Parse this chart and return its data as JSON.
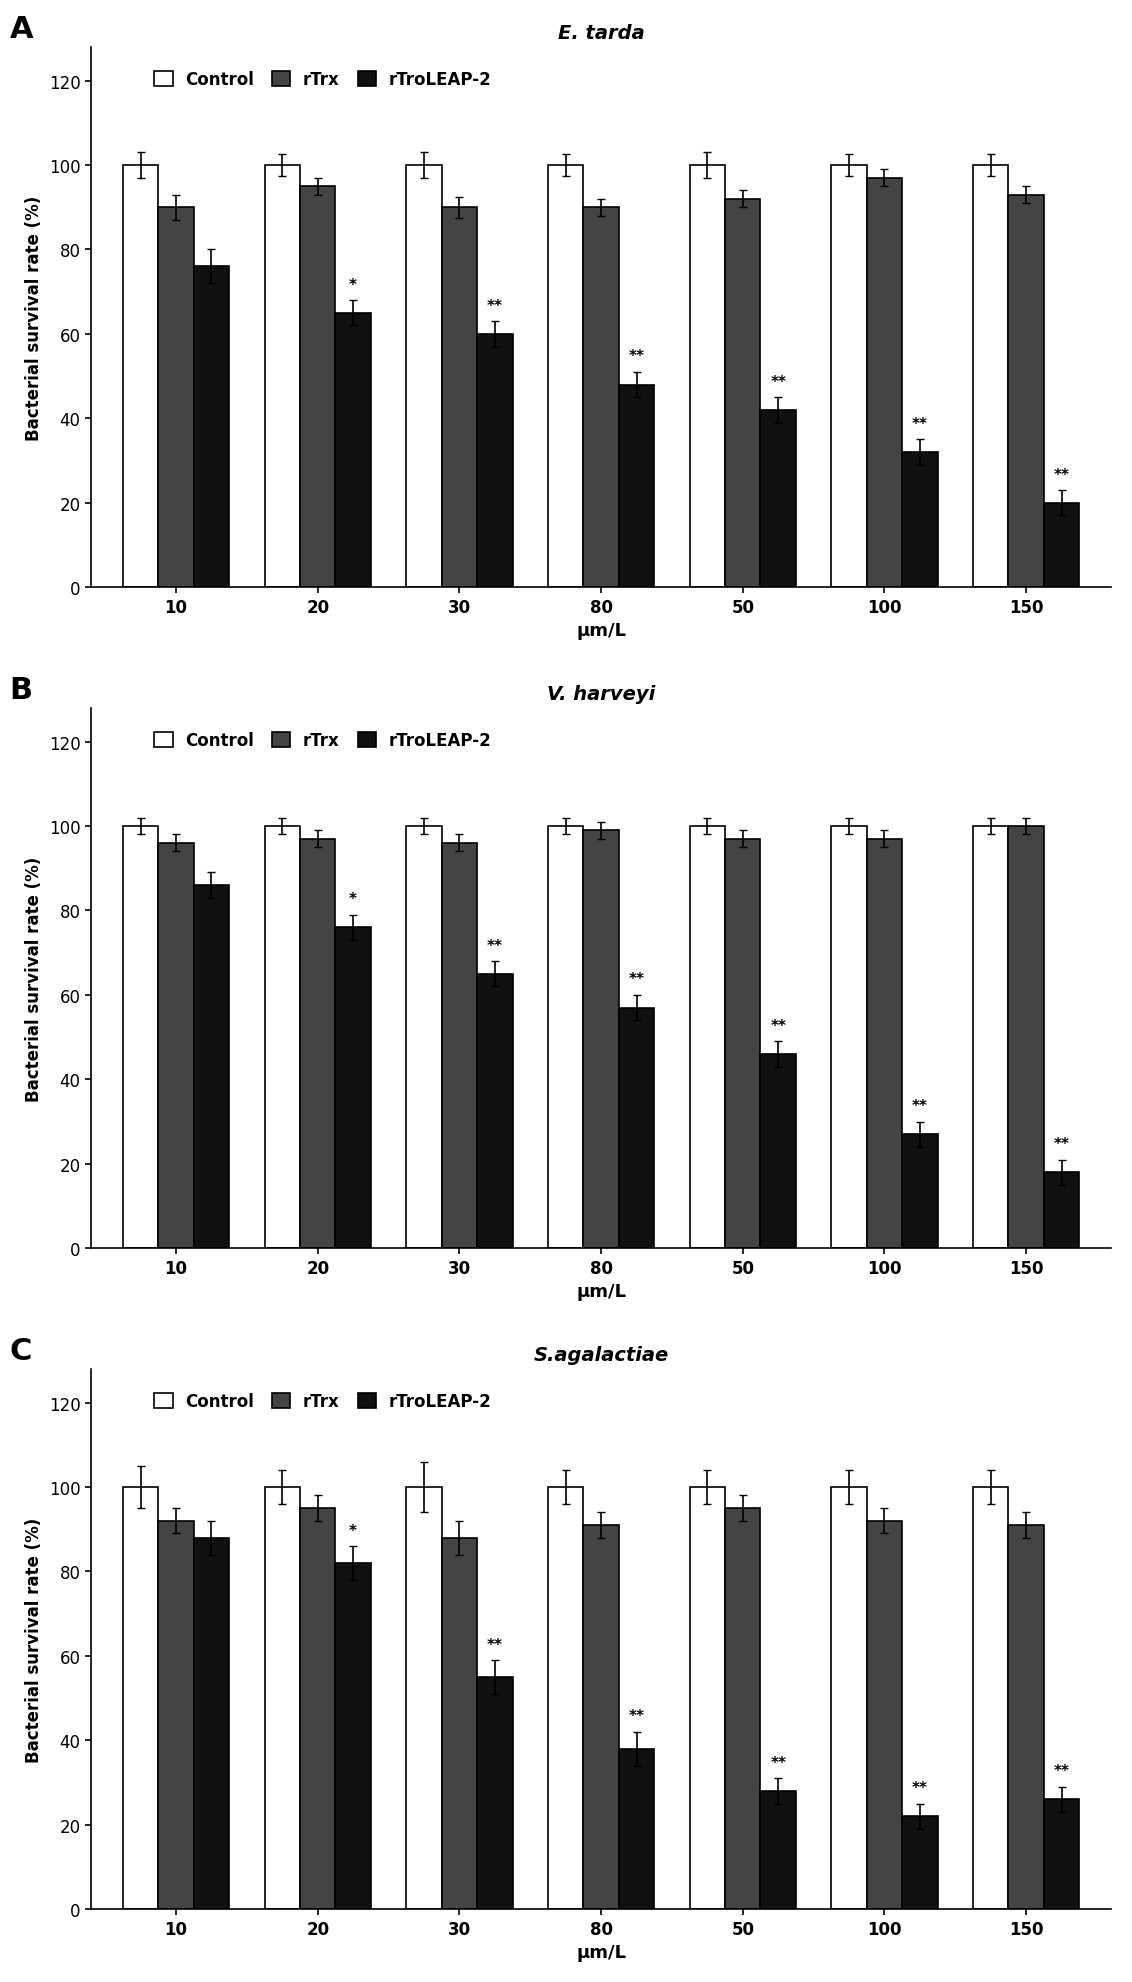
{
  "panels": [
    {
      "label": "A",
      "title": "E. tarda",
      "title_style": "italic",
      "concentrations": [
        10,
        20,
        30,
        80,
        50,
        100,
        150
      ],
      "control": [
        100,
        100,
        100,
        100,
        100,
        100,
        100
      ],
      "control_err": [
        3,
        2.5,
        3,
        2.5,
        3,
        2.5,
        2.5
      ],
      "rTrx": [
        90,
        95,
        90,
        90,
        92,
        97,
        93
      ],
      "rTrx_err": [
        3,
        2,
        2.5,
        2,
        2,
        2,
        2
      ],
      "rTroLEAP2": [
        76,
        65,
        60,
        48,
        42,
        32,
        20
      ],
      "rTroLEAP2_err": [
        4,
        3,
        3,
        3,
        3,
        3,
        3
      ],
      "sig_level_rTrx": [
        "",
        "",
        "",
        "",
        "",
        "",
        ""
      ],
      "sig_level_rTroLEAP2": [
        "",
        "*",
        "**",
        "**",
        "**",
        "**",
        "**"
      ]
    },
    {
      "label": "B",
      "title": "V. harveyi",
      "title_style": "italic",
      "concentrations": [
        10,
        20,
        30,
        80,
        50,
        100,
        150
      ],
      "control": [
        100,
        100,
        100,
        100,
        100,
        100,
        100
      ],
      "control_err": [
        2,
        2,
        2,
        2,
        2,
        2,
        2
      ],
      "rTrx": [
        96,
        97,
        96,
        99,
        97,
        97,
        100
      ],
      "rTrx_err": [
        2,
        2,
        2,
        2,
        2,
        2,
        2
      ],
      "rTroLEAP2": [
        86,
        76,
        65,
        57,
        46,
        27,
        18
      ],
      "rTroLEAP2_err": [
        3,
        3,
        3,
        3,
        3,
        3,
        3
      ],
      "sig_level_rTrx": [
        "",
        "",
        "",
        "",
        "",
        "",
        ""
      ],
      "sig_level_rTroLEAP2": [
        "",
        "*",
        "**",
        "**",
        "**",
        "**",
        "**"
      ]
    },
    {
      "label": "C",
      "title": "S.agalactiae",
      "title_style": "italic",
      "concentrations": [
        10,
        20,
        30,
        80,
        50,
        100,
        150
      ],
      "control": [
        100,
        100,
        100,
        100,
        100,
        100,
        100
      ],
      "control_err": [
        5,
        4,
        6,
        4,
        4,
        4,
        4
      ],
      "rTrx": [
        92,
        95,
        88,
        91,
        95,
        92,
        91
      ],
      "rTrx_err": [
        3,
        3,
        4,
        3,
        3,
        3,
        3
      ],
      "rTroLEAP2": [
        88,
        82,
        55,
        38,
        28,
        22,
        26
      ],
      "rTroLEAP2_err": [
        4,
        4,
        4,
        4,
        3,
        3,
        3
      ],
      "sig_level_rTrx": [
        "",
        "",
        "",
        "",
        "",
        "",
        ""
      ],
      "sig_level_rTroLEAP2": [
        "",
        "*",
        "**",
        "**",
        "**",
        "**",
        "**"
      ]
    }
  ],
  "bar_width": 0.25,
  "color_control": "#ffffff",
  "color_rTrx": "#444444",
  "color_rTroLEAP2": "#111111",
  "edgecolor": "#000000",
  "ylabel": "Bacterial survival rate (%)",
  "xlabel": "μm/L",
  "ylim": [
    0,
    128
  ],
  "yticks": [
    0,
    20,
    40,
    60,
    80,
    100,
    120
  ],
  "figsize": [
    11.32,
    19.83
  ],
  "dpi": 100
}
